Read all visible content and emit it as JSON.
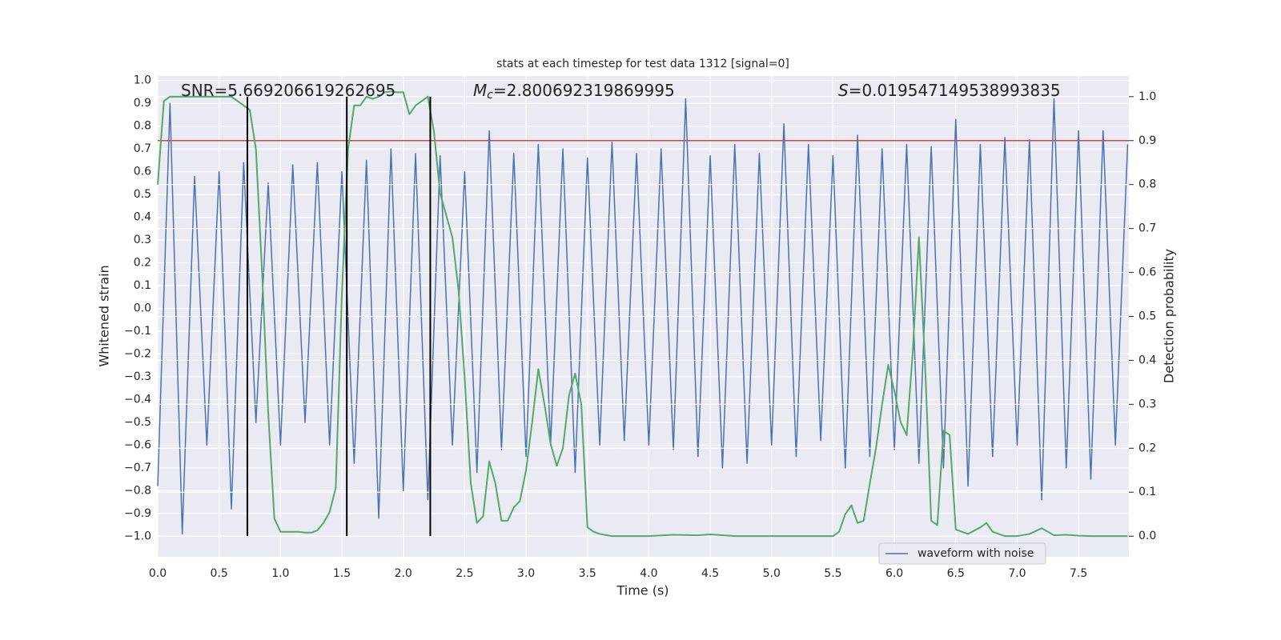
{
  "chart_data": {
    "type": "line",
    "title": "stats at each timestep for test data 1312 [signal=0]",
    "xlabel": "Time (s)",
    "ylabel": "Whitened strain",
    "y2label": "Detection probability",
    "xlim": [
      0,
      7.91
    ],
    "ylim": [
      -1.09,
      1.02
    ],
    "y2lim": [
      -0.047,
      1.047
    ],
    "xticks": [
      {
        "value": 0,
        "label": "0.0"
      },
      0.5,
      {
        "value": 1,
        "label": "1.0"
      },
      1.5,
      {
        "value": 2,
        "label": "2.0"
      },
      2.5,
      {
        "value": 3,
        "label": "3.0"
      },
      3.5,
      {
        "value": 4,
        "label": "4.0"
      },
      4.5,
      {
        "value": 5,
        "label": "5.0"
      },
      5.5,
      {
        "value": 6,
        "label": "6.0"
      },
      6.5,
      {
        "value": 7,
        "label": "7.0"
      },
      7.5
    ],
    "yticks": [
      {
        "value": -1,
        "label": "−1.0"
      },
      {
        "value": -0.9,
        "label": "−0.9"
      },
      {
        "value": -0.8,
        "label": "−0.8"
      },
      {
        "value": -0.7,
        "label": "−0.7"
      },
      {
        "value": -0.6,
        "label": "−0.6"
      },
      {
        "value": -0.5,
        "label": "−0.5"
      },
      {
        "value": -0.4,
        "label": "−0.4"
      },
      {
        "value": -0.3,
        "label": "−0.3"
      },
      {
        "value": -0.2,
        "label": "−0.2"
      },
      {
        "value": -0.1,
        "label": "−0.1"
      },
      {
        "value": 0,
        "label": "0.0"
      },
      0.1,
      0.2,
      0.3,
      0.4,
      0.5,
      0.6,
      0.7,
      0.8,
      0.9,
      {
        "value": 1,
        "label": "1.0"
      }
    ],
    "y2ticks": [
      {
        "value": 0,
        "label": "0.0"
      },
      0.1,
      0.2,
      0.3,
      0.4,
      0.5,
      0.6,
      0.7,
      0.8,
      0.9,
      {
        "value": 1,
        "label": "1.0"
      }
    ],
    "grid": true,
    "legend": "lower right",
    "series": [
      {
        "name": "waveform with noise",
        "color": "#4c72b0",
        "x": [
          0.0,
          0.1,
          0.2,
          0.3,
          0.4,
          0.5,
          0.6,
          0.7,
          0.8,
          0.9,
          1.0,
          1.1,
          1.2,
          1.3,
          1.4,
          1.5,
          1.6,
          1.7,
          1.8,
          1.9,
          2.0,
          2.1,
          2.2,
          2.3,
          2.4,
          2.5,
          2.6,
          2.7,
          2.8,
          2.9,
          3.0,
          3.1,
          3.2,
          3.3,
          3.4,
          3.5,
          3.6,
          3.7,
          3.8,
          3.9,
          4.0,
          4.1,
          4.2,
          4.3,
          4.4,
          4.5,
          4.6,
          4.7,
          4.8,
          4.9,
          5.0,
          5.1,
          5.2,
          5.3,
          5.4,
          5.5,
          5.6,
          5.7,
          5.8,
          5.9,
          6.0,
          6.1,
          6.2,
          6.3,
          6.4,
          6.5,
          6.6,
          6.7,
          6.8,
          6.9,
          7.0,
          7.1,
          7.2,
          7.3,
          7.4,
          7.5,
          7.6,
          7.7,
          7.8,
          7.9
        ],
        "values": [
          -0.78,
          0.9,
          -0.99,
          0.58,
          -0.6,
          0.6,
          -0.88,
          0.64,
          -0.5,
          0.55,
          -0.6,
          0.63,
          -0.5,
          0.64,
          -0.6,
          0.6,
          -0.68,
          0.65,
          -0.92,
          0.7,
          -0.8,
          0.68,
          -0.84,
          0.67,
          -0.6,
          0.6,
          -0.72,
          0.78,
          -0.62,
          0.68,
          -0.65,
          0.72,
          -0.6,
          0.7,
          -0.72,
          0.66,
          -0.6,
          0.73,
          -0.58,
          0.68,
          -0.6,
          0.7,
          -0.62,
          0.92,
          -0.65,
          0.67,
          -0.7,
          0.72,
          -0.68,
          0.68,
          -0.6,
          0.81,
          -0.65,
          0.72,
          -0.58,
          0.67,
          -0.7,
          0.76,
          -0.65,
          0.7,
          -0.62,
          0.72,
          -0.68,
          0.71,
          -0.7,
          0.83,
          -0.78,
          0.72,
          -0.65,
          0.75,
          -0.6,
          0.74,
          -0.84,
          0.92,
          -0.7,
          0.78,
          -0.75,
          0.78,
          -0.6,
          0.72
        ]
      },
      {
        "color": "#55a868",
        "axis": "y2",
        "x": [
          0.0,
          0.05,
          0.1,
          0.2,
          0.3,
          0.4,
          0.5,
          0.6,
          0.65,
          0.7,
          0.75,
          0.8,
          0.85,
          0.9,
          0.95,
          1.0,
          1.1,
          1.15,
          1.2,
          1.25,
          1.3,
          1.35,
          1.4,
          1.45,
          1.5,
          1.55,
          1.6,
          1.65,
          1.7,
          1.75,
          1.8,
          1.85,
          1.9,
          1.95,
          2.0,
          2.05,
          2.1,
          2.15,
          2.2,
          2.25,
          2.3,
          2.35,
          2.4,
          2.45,
          2.5,
          2.55,
          2.6,
          2.65,
          2.7,
          2.75,
          2.8,
          2.85,
          2.9,
          2.95,
          3.0,
          3.05,
          3.1,
          3.15,
          3.2,
          3.25,
          3.3,
          3.35,
          3.4,
          3.45,
          3.5,
          3.55,
          3.6,
          3.7,
          4.0,
          4.2,
          4.4,
          4.5,
          4.7,
          5.5,
          5.55,
          5.6,
          5.65,
          5.7,
          5.75,
          5.8,
          5.85,
          5.9,
          5.95,
          6.0,
          6.05,
          6.1,
          6.15,
          6.2,
          6.25,
          6.3,
          6.35,
          6.4,
          6.45,
          6.5,
          6.6,
          6.7,
          6.75,
          6.8,
          6.9,
          7.0,
          7.1,
          7.2,
          7.25,
          7.3,
          7.4,
          7.5,
          7.6,
          7.9
        ],
        "values": [
          0.8,
          0.99,
          1.0,
          1.0,
          1.0,
          1.0,
          1.0,
          1.0,
          0.99,
          0.98,
          0.97,
          0.88,
          0.6,
          0.28,
          0.04,
          0.01,
          0.01,
          0.01,
          0.008,
          0.008,
          0.013,
          0.03,
          0.055,
          0.11,
          0.55,
          0.88,
          0.98,
          0.98,
          1.0,
          0.995,
          1.0,
          1.01,
          1.012,
          1.01,
          1.01,
          0.96,
          0.98,
          0.99,
          1.0,
          0.92,
          0.78,
          0.73,
          0.68,
          0.56,
          0.36,
          0.12,
          0.03,
          0.045,
          0.17,
          0.12,
          0.035,
          0.035,
          0.065,
          0.08,
          0.15,
          0.26,
          0.38,
          0.3,
          0.21,
          0.16,
          0.2,
          0.32,
          0.37,
          0.3,
          0.02,
          0.01,
          0.005,
          0.0,
          0.0,
          0.003,
          0.002,
          0.004,
          0.0,
          0.0,
          0.01,
          0.05,
          0.07,
          0.03,
          0.035,
          0.12,
          0.2,
          0.3,
          0.39,
          0.33,
          0.26,
          0.23,
          0.42,
          0.68,
          0.39,
          0.035,
          0.025,
          0.24,
          0.23,
          0.015,
          0.005,
          0.02,
          0.03,
          0.01,
          0.0,
          0.0,
          0.005,
          0.018,
          0.01,
          0.002,
          0.003,
          0.001,
          0.0,
          0.0
        ]
      }
    ],
    "threshold": {
      "value": 0.9,
      "axis": "y2",
      "color": "#c44e52"
    },
    "markers": {
      "x": [
        0.73,
        1.54,
        2.22
      ],
      "color": "#000000"
    },
    "annotations": [
      {
        "text": "SNR=5.669206619262695"
      },
      {
        "symbol": "M",
        "subscript": "c",
        "text": "=2.800692319869995"
      },
      {
        "symbol": "S",
        "text": "=0.019547149538993835"
      }
    ]
  }
}
